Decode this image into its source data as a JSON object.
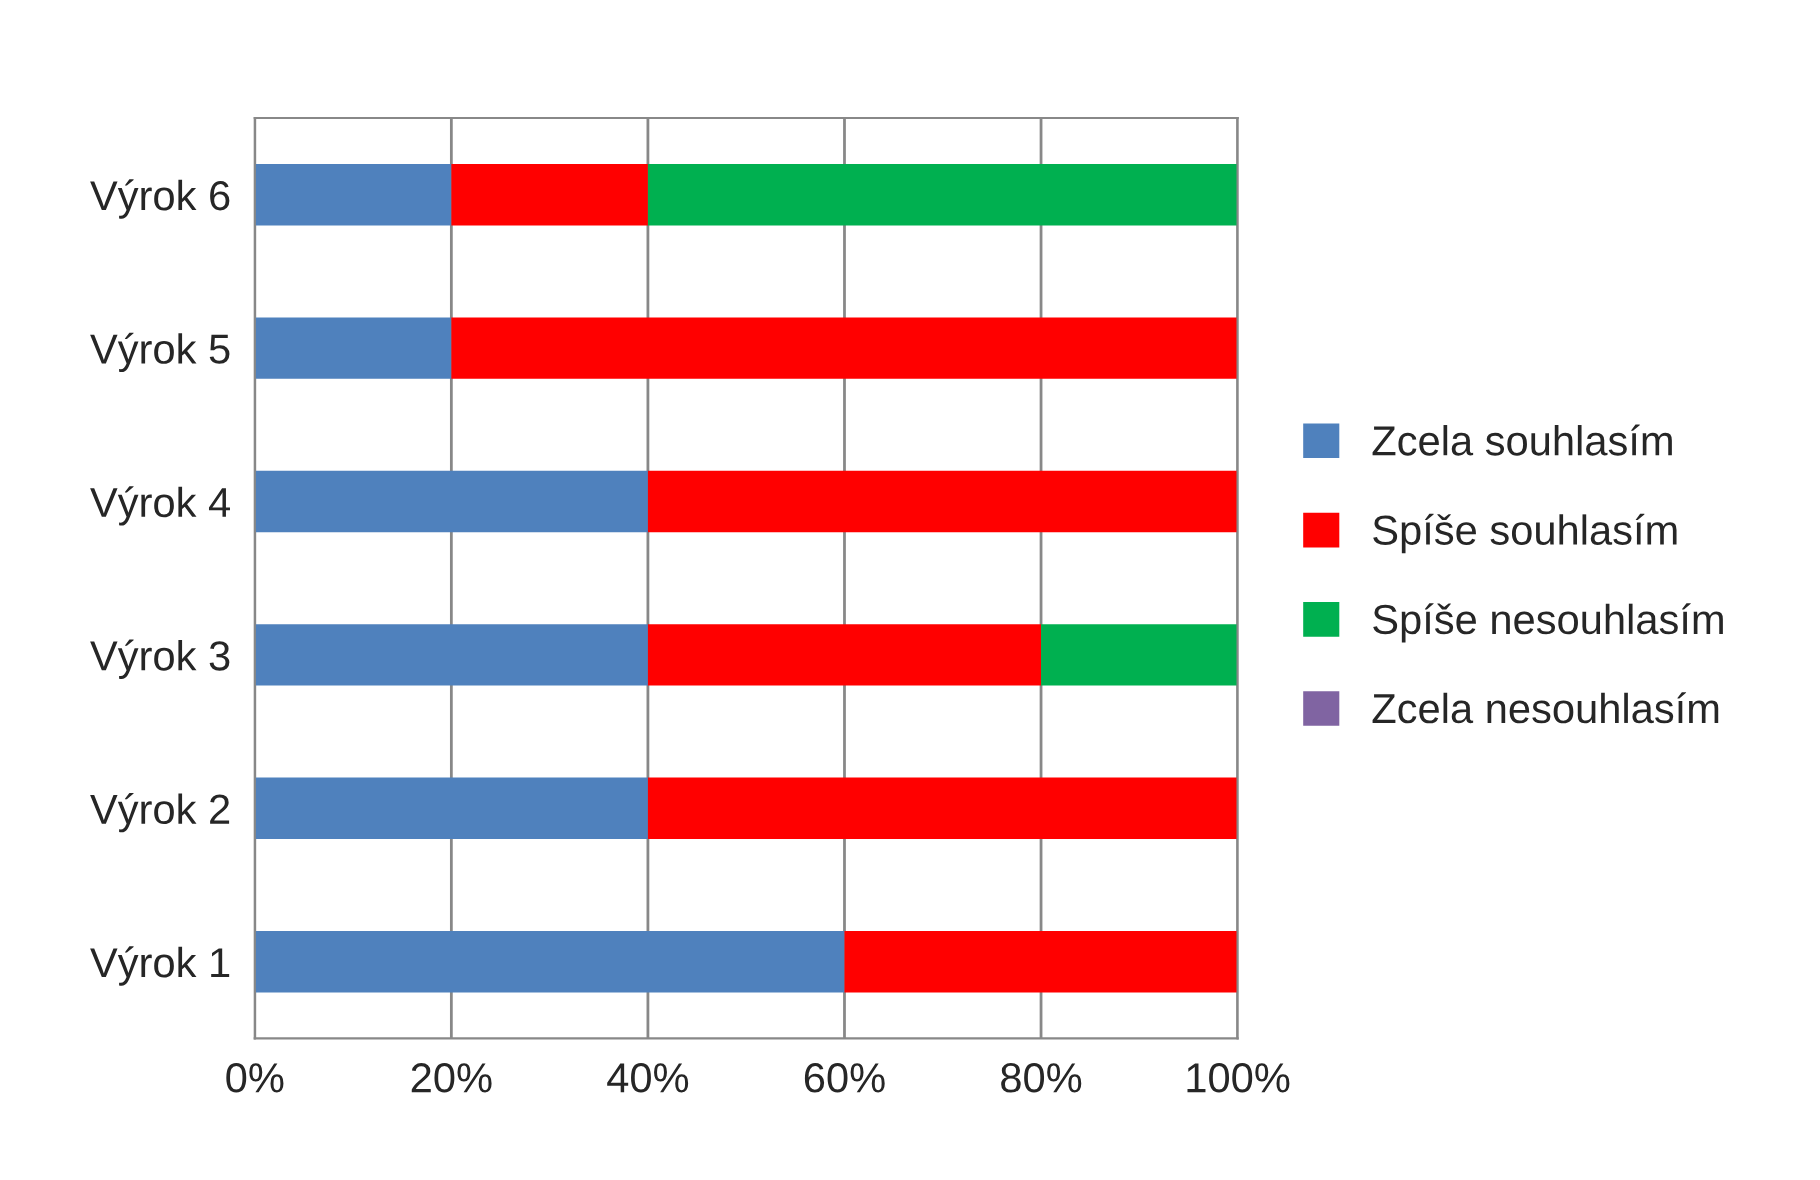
{
  "chart_data": {
    "type": "bar",
    "orientation": "horizontal",
    "stacked": true,
    "categories": [
      "Výrok 6",
      "Výrok 5",
      "Výrok 4",
      "Výrok 3",
      "Výrok 2",
      "Výrok 1"
    ],
    "series": [
      {
        "name": "Zcela souhlasím",
        "color": "#4f81bd",
        "values": [
          20,
          20,
          40,
          40,
          40,
          60
        ]
      },
      {
        "name": "Spíše souhlasím",
        "color": "#ff0000",
        "values": [
          20,
          80,
          60,
          40,
          60,
          40
        ]
      },
      {
        "name": "Spíše nesouhlasím",
        "color": "#00b050",
        "values": [
          60,
          0,
          0,
          20,
          0,
          0
        ]
      },
      {
        "name": "Zcela nesouhlasím",
        "color": "#8064a2",
        "values": [
          0,
          0,
          0,
          0,
          0,
          0
        ]
      }
    ],
    "xlim": [
      0,
      100
    ],
    "xticks": [
      {
        "value": 0,
        "label": "0%"
      },
      {
        "value": 20,
        "label": "20%"
      },
      {
        "value": 40,
        "label": "40%"
      },
      {
        "value": 60,
        "label": "60%"
      },
      {
        "value": 80,
        "label": "80%"
      },
      {
        "value": 100,
        "label": "100%"
      }
    ],
    "grid": "x",
    "legend": "right"
  }
}
